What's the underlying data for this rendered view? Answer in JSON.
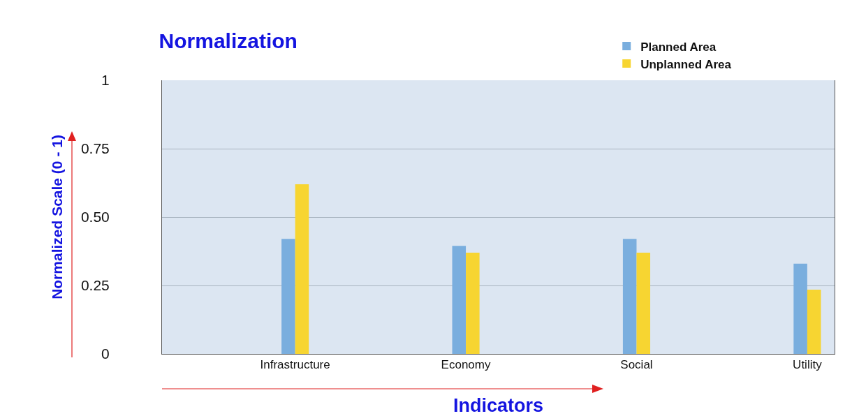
{
  "chart_data": {
    "type": "bar",
    "title": "Normalization",
    "xlabel": "Indicators",
    "ylabel": "Normalized Scale (0 - 1)",
    "categories": [
      "Infrastructure",
      "Economy",
      "Social",
      "Utility"
    ],
    "series": [
      {
        "name": "Planned Area",
        "color": "#7aaede",
        "values": [
          0.42,
          0.395,
          0.42,
          0.33
        ]
      },
      {
        "name": "Unplanned Area",
        "color": "#f7d531",
        "values": [
          0.62,
          0.37,
          0.37,
          0.235
        ]
      }
    ],
    "ylim": [
      0,
      1
    ],
    "yticks": [
      0,
      0.25,
      {
        "value": 0.5,
        "label": "0.50"
      },
      0.75,
      1
    ],
    "grid": "y",
    "legend": "top right"
  }
}
